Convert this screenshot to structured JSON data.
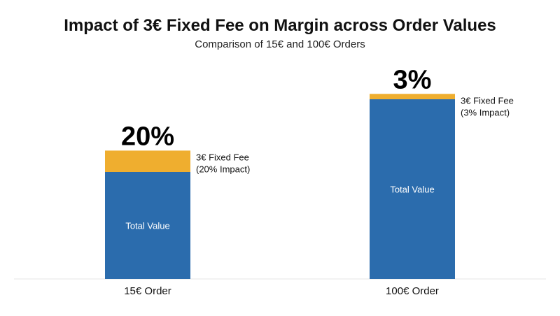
{
  "chart_data": {
    "type": "bar",
    "stacked": true,
    "title": "Impact of 3€ Fixed Fee on Margin across Order Values",
    "subtitle": "Comparison of 15€ and 100€ Orders",
    "categories": [
      "15€ Order",
      "100€ Order"
    ],
    "series": [
      {
        "name": "Total Value",
        "color": "#2b6cad",
        "values": [
          15,
          100
        ],
        "labels": [
          "Total Value",
          "Total Value"
        ]
      },
      {
        "name": "3€ Fixed Fee",
        "color": "#efae2f",
        "values": [
          3,
          3
        ],
        "labels": [
          "3€ Fixed Fee\n(20% Impact)",
          "3€ Fixed Fee\n(3% Impact)"
        ]
      }
    ],
    "impact_labels": [
      "20%",
      "3%"
    ],
    "grid": false,
    "legend": "none"
  }
}
